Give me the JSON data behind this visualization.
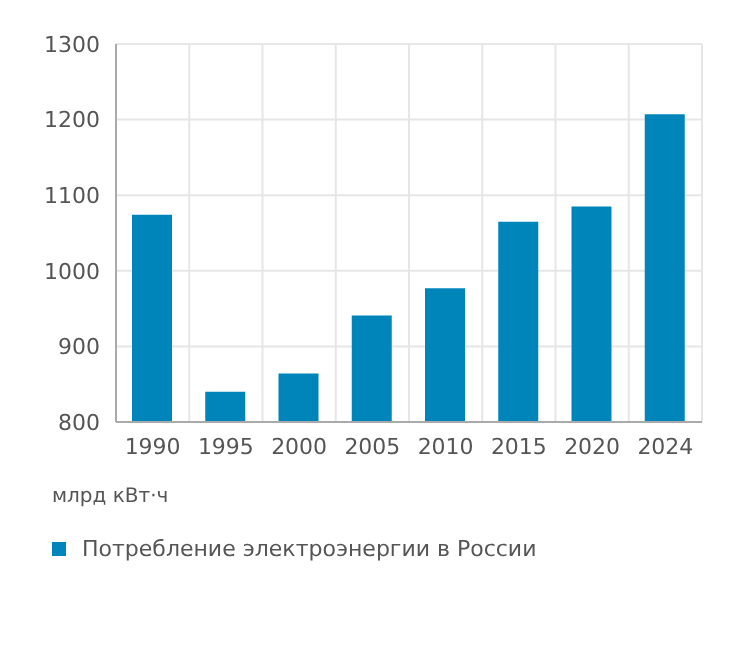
{
  "chart_data": {
    "type": "bar",
    "categories": [
      "1990",
      "1995",
      "2000",
      "2005",
      "2010",
      "2015",
      "2020",
      "2024"
    ],
    "series": [
      {
        "name": "Потребление электроэнергии в России",
        "color": "#0085ba",
        "values": [
          1074,
          840,
          864,
          941,
          977,
          1065,
          1085,
          1207
        ]
      }
    ],
    "ylabel": "млрд кВт·ч",
    "ylim": [
      800,
      1300
    ],
    "yticks": [
      800,
      900,
      1000,
      1100,
      1200,
      1300
    ],
    "grid": true,
    "legend": "bottom left"
  }
}
